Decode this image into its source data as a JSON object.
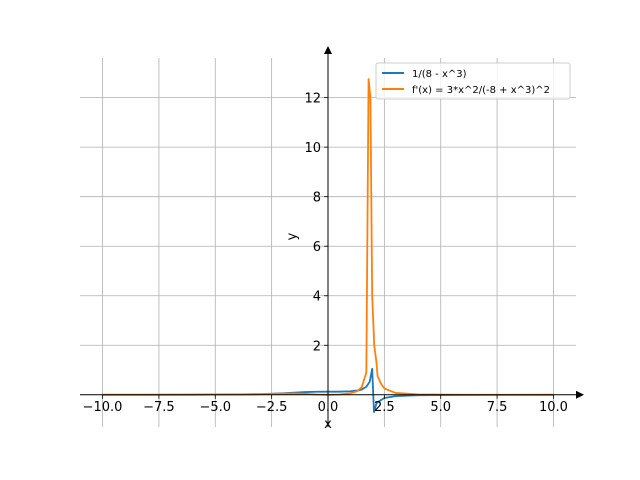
{
  "chart_data": {
    "type": "line",
    "xlabel": "x",
    "ylabel": "y",
    "xlim": [
      -11.0,
      11.0
    ],
    "ylim": [
      -1.3,
      13.6
    ],
    "grid": true,
    "legend_placement": "top-right",
    "x_ticks": [
      {
        "value": -10.0,
        "label": "−10.0"
      },
      {
        "value": -7.5,
        "label": "−7.5"
      },
      {
        "value": -5.0,
        "label": "−5.0"
      },
      {
        "value": -2.5,
        "label": "−2.5"
      },
      {
        "value": 0.0,
        "label": "0.0"
      },
      {
        "value": 2.5,
        "label": "2.5"
      },
      {
        "value": 5.0,
        "label": "5.0"
      },
      {
        "value": 7.5,
        "label": "7.5"
      },
      {
        "value": 10.0,
        "label": "10.0"
      }
    ],
    "y_ticks": [
      {
        "value": 2,
        "label": "2"
      },
      {
        "value": 4,
        "label": "4"
      },
      {
        "value": 6,
        "label": "6"
      },
      {
        "value": 8,
        "label": "8"
      },
      {
        "value": 10,
        "label": "10"
      },
      {
        "value": 12,
        "label": "12"
      }
    ],
    "series": [
      {
        "name": "1/(8 - x^3)",
        "color": "#1f77b4",
        "points": [
          [
            -10.0,
            0.001
          ],
          [
            -8.0,
            0.002
          ],
          [
            -6.0,
            0.0045
          ],
          [
            -4.0,
            0.0139
          ],
          [
            -3.0,
            0.0286
          ],
          [
            -2.0,
            0.0625
          ],
          [
            -1.5,
            0.0882
          ],
          [
            -1.0,
            0.1111
          ],
          [
            -0.5,
            0.124
          ],
          [
            0.0,
            0.125
          ],
          [
            0.5,
            0.126
          ],
          [
            1.0,
            0.1429
          ],
          [
            1.3,
            0.1706
          ],
          [
            1.5,
            0.2162
          ],
          [
            1.7,
            0.3245
          ],
          [
            1.85,
            0.526
          ],
          [
            1.96,
            1.05
          ],
          [
            2.04,
            -0.7
          ],
          [
            2.15,
            -0.34
          ],
          [
            2.3,
            -0.24
          ],
          [
            2.5,
            -0.13
          ],
          [
            3.0,
            -0.0526
          ],
          [
            4.0,
            -0.0179
          ],
          [
            6.0,
            -0.0049
          ],
          [
            8.0,
            -0.002
          ],
          [
            10.0,
            -0.001
          ]
        ]
      },
      {
        "name": "f'(x) = 3*x^2/(-8 + x^3)^2",
        "color": "#ff7f0e",
        "points": [
          [
            -10.0,
            0.0003
          ],
          [
            -8.0,
            0.0007
          ],
          [
            -6.0,
            0.0021
          ],
          [
            -4.0,
            0.0093
          ],
          [
            -3.0,
            0.0221
          ],
          [
            -2.0,
            0.0469
          ],
          [
            -1.5,
            0.053
          ],
          [
            -1.0,
            0.037
          ],
          [
            -0.5,
            0.0115
          ],
          [
            0.0,
            0.0
          ],
          [
            0.5,
            0.0121
          ],
          [
            1.0,
            0.0612
          ],
          [
            1.3,
            0.1484
          ],
          [
            1.5,
            0.3155
          ],
          [
            1.7,
            0.9
          ],
          [
            1.8,
            12.75
          ],
          [
            1.88,
            12.0
          ],
          [
            1.96,
            4.0
          ],
          [
            2.05,
            2.0
          ],
          [
            2.15,
            1.3
          ],
          [
            2.2,
            0.75
          ],
          [
            2.35,
            0.45
          ],
          [
            2.5,
            0.2544
          ],
          [
            3.0,
            0.0748
          ],
          [
            4.0,
            0.0153
          ],
          [
            6.0,
            0.0022
          ],
          [
            8.0,
            0.0005
          ],
          [
            10.0,
            0.0003
          ]
        ]
      }
    ]
  }
}
